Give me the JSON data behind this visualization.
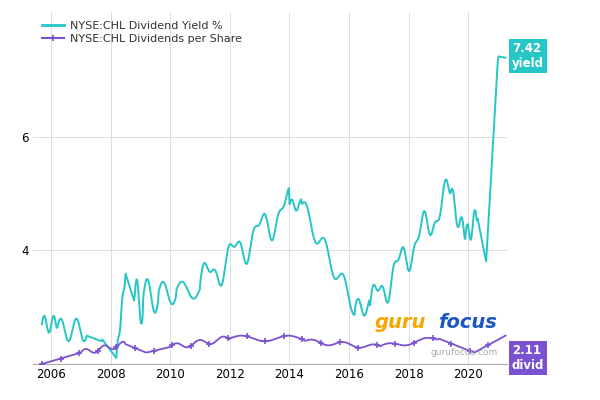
{
  "title": "",
  "legend1": "NYSE:CHL Dividend Yield %",
  "legend2": "NYSE:CHL Dividends per Share",
  "yield_color": "#26C6C6",
  "dividend_color": "#7B52D0",
  "background_color": "#FFFFFF",
  "grid_color": "#DDDDDD",
  "label_yield_text": "7.42\nyield",
  "label_div_text": "2.11\ndivid",
  "label_yield_bg": "#26C6C6",
  "label_div_bg": "#7B52D0",
  "x_ticks": [
    2006,
    2008,
    2010,
    2012,
    2014,
    2016,
    2018,
    2020
  ],
  "y_ticks": [
    4,
    6
  ],
  "ylim": [
    2.0,
    8.2
  ],
  "xlim": [
    2005.4,
    2021.3
  ],
  "gurufocus_color_guru": "#F5A800",
  "gurufocus_color_focus": "#1A56C4",
  "watermark": "gurufocus.com"
}
